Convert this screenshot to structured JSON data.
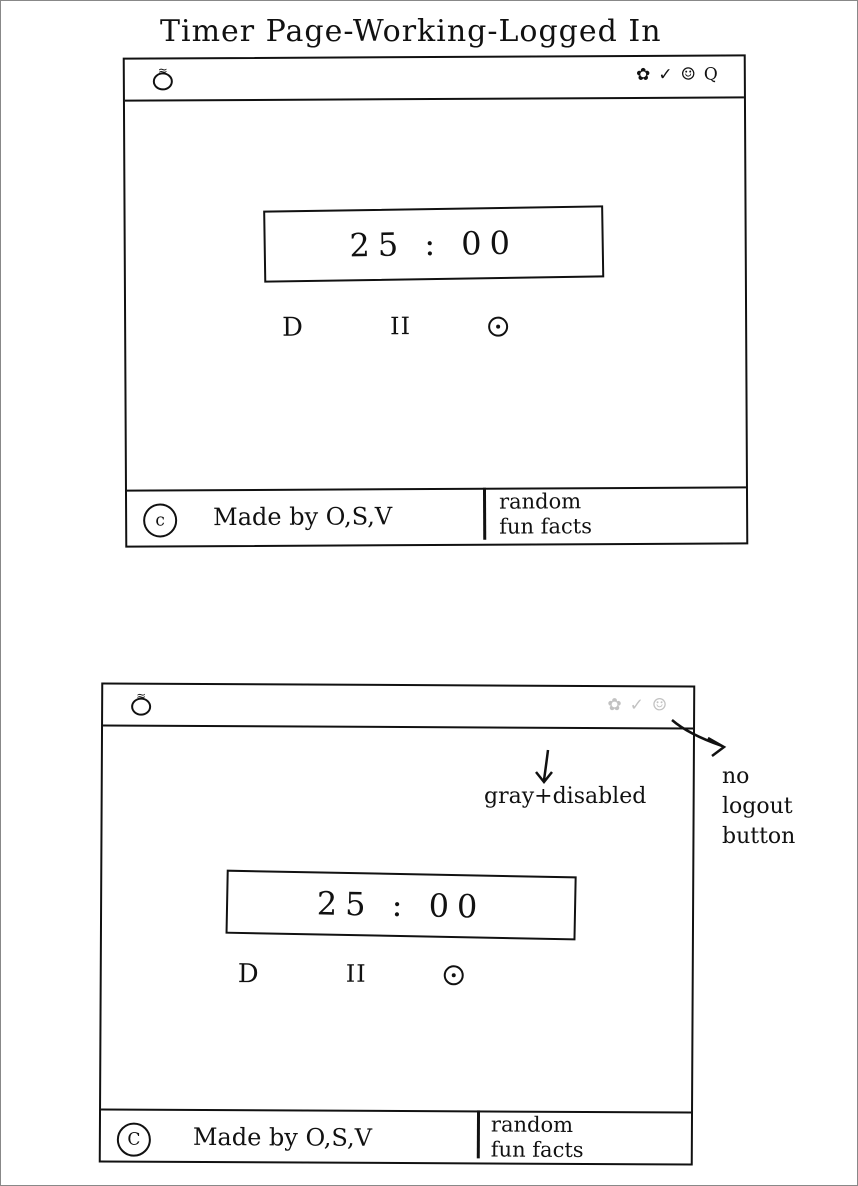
{
  "title": "Timer Page-Working-Logged In",
  "wireframes": [
    {
      "nav_icons": [
        "✿",
        "✓",
        "☺",
        "Q"
      ],
      "timer": "25 : 00",
      "controls": {
        "play": "D",
        "pause": "II"
      },
      "footer": {
        "copyright": "c",
        "made_by": "Made by O,S,V",
        "fun_facts": "random\nfun facts"
      }
    },
    {
      "nav_icons": [
        "✿",
        "✓",
        "☺"
      ],
      "nav_icons_state": "gray + disabled",
      "timer": "25 : 00",
      "controls": {
        "play": "D",
        "pause": "II"
      },
      "footer": {
        "copyright": "C",
        "made_by": "Made by O,S,V",
        "fun_facts": "random\nfun facts"
      }
    }
  ],
  "annotations": {
    "gray_disabled": "gray+disabled",
    "no_logout": "no\nlogout\nbutton"
  },
  "colors": {
    "ink": "#111111",
    "disabled_gray": "#c2c2c2",
    "paper": "#ffffff"
  }
}
